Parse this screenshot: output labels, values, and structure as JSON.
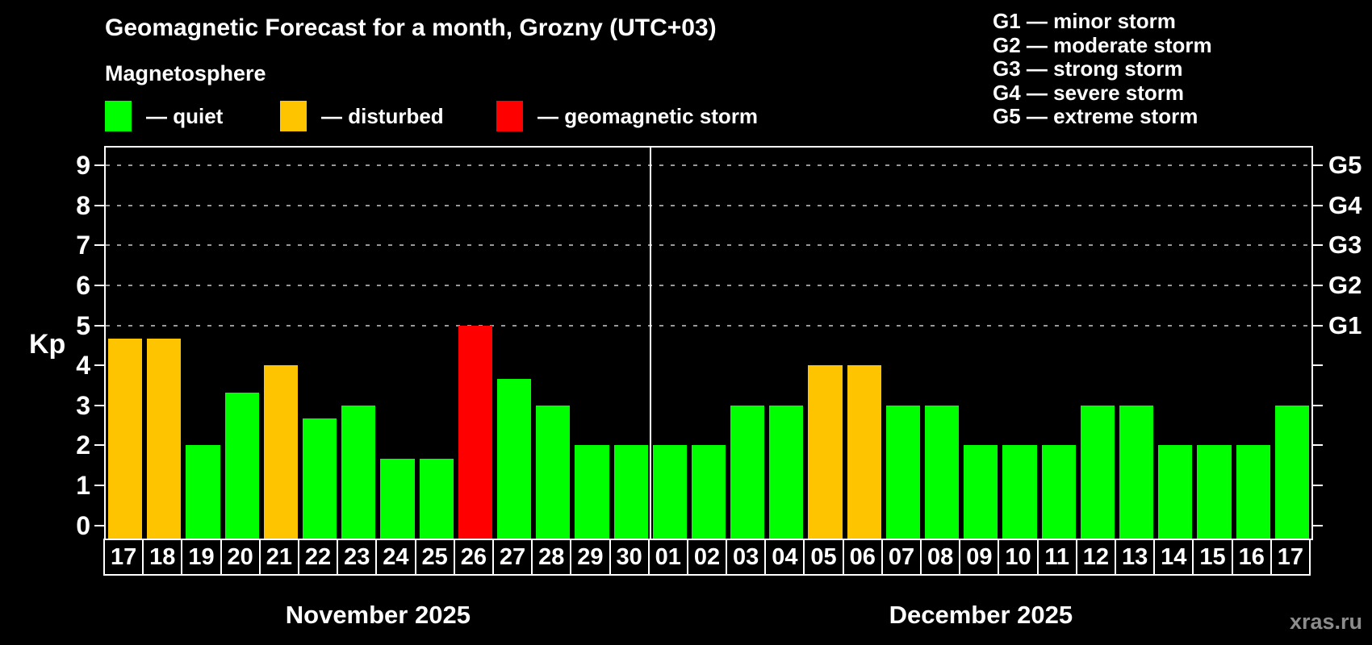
{
  "header": {
    "title": "Geomagnetic Forecast for a month, Grozny (UTC+03)",
    "subtitle": "Magnetosphere"
  },
  "legend": {
    "items": [
      {
        "status": "quiet",
        "label": "— quiet",
        "color": "#00ff00"
      },
      {
        "status": "disturbed",
        "label": "— disturbed",
        "color": "#ffc400"
      },
      {
        "status": "storm",
        "label": "— geomagnetic storm",
        "color": "#ff0000"
      }
    ]
  },
  "g_scale_legend": {
    "items": [
      "G1 — minor storm",
      "G2 — moderate storm",
      "G3 — strong storm",
      "G4 — severe storm",
      "G5 — extreme storm"
    ]
  },
  "watermark": "xras.ru",
  "colors": {
    "background": "#000000",
    "text": "#ffffff",
    "gridline": "#999999",
    "axis": "#ffffff",
    "watermark": "#8c8c8c"
  },
  "chart_data": {
    "type": "bar",
    "title": "Geomagnetic Forecast for a month, Grozny (UTC+03)",
    "ylabel": "Kp",
    "ylim": [
      -0.33,
      9.45
    ],
    "y_ticks": [
      0,
      1,
      2,
      3,
      4,
      5,
      6,
      7,
      8,
      9
    ],
    "gridlines_at": [
      5,
      6,
      7,
      8,
      9
    ],
    "grid_style": "dashed",
    "legend_position": "top-left",
    "right_axis": [
      {
        "value": 5,
        "label": "G1"
      },
      {
        "value": 6,
        "label": "G2"
      },
      {
        "value": 7,
        "label": "G3"
      },
      {
        "value": 8,
        "label": "G4"
      },
      {
        "value": 9,
        "label": "G5"
      }
    ],
    "months": [
      {
        "label": "November 2025",
        "days": [
          {
            "day": "17",
            "kp": 4.67,
            "status": "disturbed"
          },
          {
            "day": "18",
            "kp": 4.67,
            "status": "disturbed"
          },
          {
            "day": "19",
            "kp": 2,
            "status": "quiet"
          },
          {
            "day": "20",
            "kp": 3.33,
            "status": "quiet"
          },
          {
            "day": "21",
            "kp": 4,
            "status": "disturbed"
          },
          {
            "day": "22",
            "kp": 2.67,
            "status": "quiet"
          },
          {
            "day": "23",
            "kp": 3,
            "status": "quiet"
          },
          {
            "day": "24",
            "kp": 1.67,
            "status": "quiet"
          },
          {
            "day": "25",
            "kp": 1.67,
            "status": "quiet"
          },
          {
            "day": "26",
            "kp": 5,
            "status": "storm"
          },
          {
            "day": "27",
            "kp": 3.67,
            "status": "quiet"
          },
          {
            "day": "28",
            "kp": 3,
            "status": "quiet"
          },
          {
            "day": "29",
            "kp": 2,
            "status": "quiet"
          },
          {
            "day": "30",
            "kp": 2,
            "status": "quiet"
          }
        ]
      },
      {
        "label": "December 2025",
        "days": [
          {
            "day": "01",
            "kp": 2,
            "status": "quiet"
          },
          {
            "day": "02",
            "kp": 2,
            "status": "quiet"
          },
          {
            "day": "03",
            "kp": 3,
            "status": "quiet"
          },
          {
            "day": "04",
            "kp": 3,
            "status": "quiet"
          },
          {
            "day": "05",
            "kp": 4,
            "status": "disturbed"
          },
          {
            "day": "06",
            "kp": 4,
            "status": "disturbed"
          },
          {
            "day": "07",
            "kp": 3,
            "status": "quiet"
          },
          {
            "day": "08",
            "kp": 3,
            "status": "quiet"
          },
          {
            "day": "09",
            "kp": 2,
            "status": "quiet"
          },
          {
            "day": "10",
            "kp": 2,
            "status": "quiet"
          },
          {
            "day": "11",
            "kp": 2,
            "status": "quiet"
          },
          {
            "day": "12",
            "kp": 3,
            "status": "quiet"
          },
          {
            "day": "13",
            "kp": 3,
            "status": "quiet"
          },
          {
            "day": "14",
            "kp": 2,
            "status": "quiet"
          },
          {
            "day": "15",
            "kp": 2,
            "status": "quiet"
          },
          {
            "day": "16",
            "kp": 2,
            "status": "quiet"
          },
          {
            "day": "17",
            "kp": 3,
            "status": "quiet"
          }
        ]
      }
    ]
  }
}
